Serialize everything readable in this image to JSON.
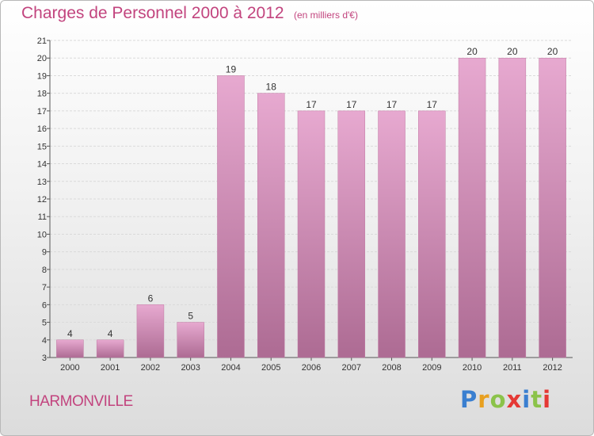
{
  "header": {
    "title": "Charges de Personnel 2000 à 2012",
    "subtitle": "(en milliers d'€)"
  },
  "footer": {
    "commune": "HARMONVILLE",
    "logo_text": "Proxiti",
    "logo_colors": [
      "#3a7fd0",
      "#e8a020",
      "#8bc34a",
      "#e53935",
      "#3a7fd0",
      "#8bc34a",
      "#e53935"
    ]
  },
  "chart_data": {
    "type": "bar",
    "categories": [
      "2000",
      "2001",
      "2002",
      "2003",
      "2004",
      "2005",
      "2006",
      "2007",
      "2008",
      "2009",
      "2010",
      "2011",
      "2012"
    ],
    "values": [
      4,
      4,
      6,
      5,
      19,
      18,
      17,
      17,
      17,
      17,
      20,
      20,
      20
    ],
    "title": "Charges de Personnel 2000 à 2012",
    "xlabel": "",
    "ylabel": "",
    "ylim": [
      3,
      21
    ],
    "yticks": [
      3,
      4,
      5,
      6,
      7,
      8,
      9,
      10,
      11,
      12,
      13,
      14,
      15,
      16,
      17,
      18,
      19,
      20,
      21
    ],
    "grid": true,
    "bar_color_top": "#e7a9d0",
    "bar_color_bottom": "#ad6b93"
  }
}
